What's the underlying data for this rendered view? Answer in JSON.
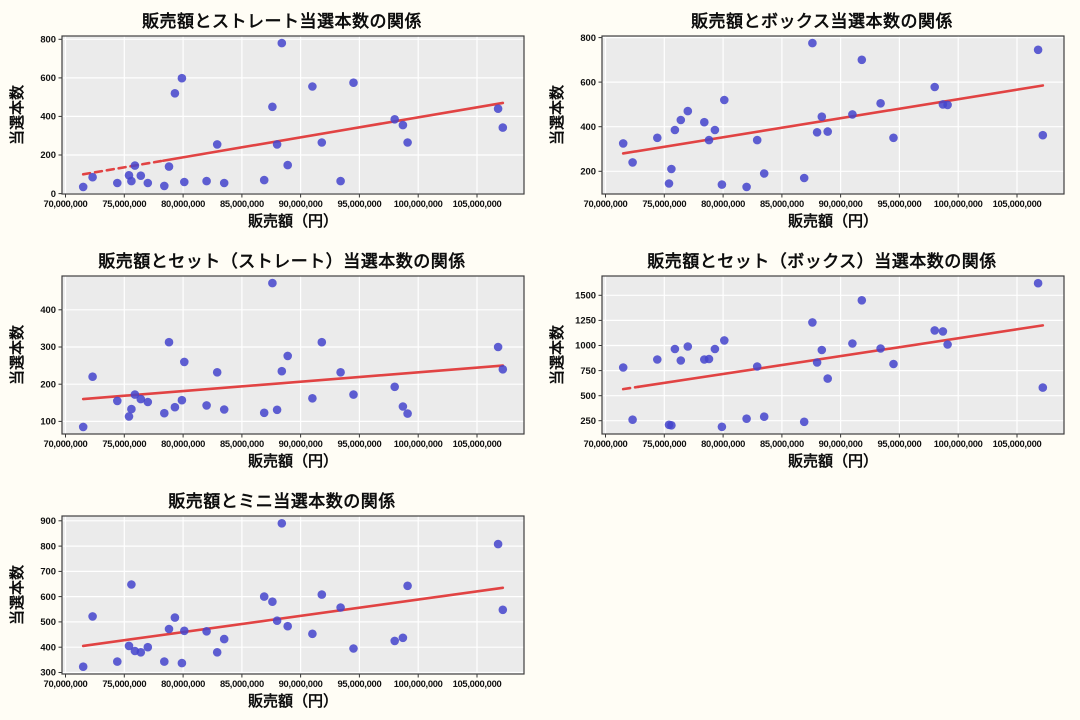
{
  "figure": {
    "background": "#fffdf5",
    "panel_bg": "#ebebeb",
    "grid_color": "#ffffff",
    "frame_color": "#3f3f3f",
    "tick_color": "#333333",
    "text_color": "#111111",
    "marker_color": "#4444cc",
    "marker_opacity": 0.85,
    "trend_color": "#e13b3b"
  },
  "shared": {
    "xlabel": "販売額（円）",
    "ylabel": "当選本数",
    "xlim": [
      69.7,
      109.0
    ],
    "xticks": [
      {
        "value_m": 70,
        "label": "70,000,000"
      },
      {
        "value_m": 75,
        "label": "75,000,000"
      },
      {
        "value_m": 80,
        "label": "80,000,000"
      },
      {
        "value_m": 85,
        "label": "85,000,000"
      },
      {
        "value_m": 90,
        "label": "90,000,000"
      },
      {
        "value_m": 95,
        "label": "95,000,000"
      },
      {
        "value_m": 100,
        "label": "100,000,000"
      },
      {
        "value_m": 105,
        "label": "105,000,000"
      }
    ],
    "x_values_m": [
      71.5,
      72.3,
      74.4,
      75.4,
      75.6,
      75.9,
      76.4,
      77.0,
      78.4,
      78.8,
      79.3,
      79.9,
      80.1,
      82.0,
      82.9,
      83.5,
      86.9,
      87.6,
      88.0,
      88.4,
      88.9,
      91.0,
      91.8,
      93.4,
      94.5,
      98.0,
      98.7,
      99.1,
      106.8,
      107.2
    ]
  },
  "chart_data": [
    {
      "type": "scatter",
      "title": "販売額とストレート当選本数の関係",
      "xlabel": "販売額（円）",
      "ylabel": "当選本数",
      "grid": true,
      "ylim": [
        -2,
        817
      ],
      "yticks": [
        0,
        200,
        400,
        600,
        800
      ],
      "y_values": [
        35,
        85,
        55,
        95,
        65,
        145,
        93,
        55,
        40,
        140,
        520,
        598,
        60,
        65,
        255,
        55,
        70,
        450,
        255,
        780,
        148,
        555,
        265,
        65,
        575,
        385,
        355,
        265,
        440,
        342
      ],
      "trend": {
        "x_start_m": 71.5,
        "y_start": 100,
        "x_end_m": 107.2,
        "y_end": 470,
        "lead_dash_end_m": 78.3
      }
    },
    {
      "type": "scatter",
      "title": "販売額とボックス当選本数の関係",
      "xlabel": "販売額（円）",
      "ylabel": "当選本数",
      "grid": true,
      "ylim": [
        98,
        807
      ],
      "yticks": [
        200,
        400,
        600,
        800
      ],
      "y_values": [
        325,
        240,
        350,
        145,
        210,
        385,
        430,
        470,
        420,
        340,
        385,
        140,
        520,
        130,
        340,
        190,
        170,
        775,
        375,
        445,
        378,
        455,
        700,
        505,
        350,
        578,
        500,
        498,
        745,
        362
      ],
      "trend": {
        "x_start_m": 71.5,
        "y_start": 280,
        "x_end_m": 107.2,
        "y_end": 585,
        "lead_dash_end_m": null
      }
    },
    {
      "type": "scatter",
      "title": "販売額とセット（ストレート）当選本数の関係",
      "xlabel": "販売額（円）",
      "ylabel": "当選本数",
      "grid": true,
      "ylim": [
        66,
        491
      ],
      "yticks": [
        100,
        200,
        300,
        400
      ],
      "y_values": [
        85,
        220,
        155,
        113,
        133,
        172,
        160,
        152,
        122,
        313,
        138,
        157,
        260,
        143,
        232,
        132,
        123,
        472,
        131,
        235,
        276,
        162,
        313,
        232,
        172,
        193,
        140,
        121,
        300,
        240
      ],
      "trend": {
        "x_start_m": 71.5,
        "y_start": 160,
        "x_end_m": 107.2,
        "y_end": 250,
        "lead_dash_end_m": null
      }
    },
    {
      "type": "scatter",
      "title": "販売額とセット（ボックス）当選本数の関係",
      "xlabel": "販売額（円）",
      "ylabel": "当選本数",
      "grid": true,
      "ylim": [
        118,
        1692
      ],
      "yticks": [
        250,
        500,
        750,
        1000,
        1250,
        1500
      ],
      "y_values": [
        780,
        260,
        860,
        210,
        205,
        965,
        850,
        990,
        860,
        865,
        965,
        190,
        1050,
        270,
        790,
        290,
        240,
        1230,
        830,
        955,
        670,
        1020,
        1450,
        970,
        815,
        1150,
        1140,
        1010,
        1620,
        580
      ],
      "trend": {
        "x_start_m": 71.5,
        "y_start": 565,
        "x_end_m": 107.2,
        "y_end": 1200,
        "lead_dash_end_m": 72.8
      }
    },
    {
      "type": "scatter",
      "title": "販売額とミニ当選本数の関係",
      "xlabel": "販売額（円）",
      "ylabel": "当選本数",
      "grid": true,
      "ylim": [
        294,
        919
      ],
      "yticks": [
        300,
        400,
        500,
        600,
        700,
        800,
        900
      ],
      "y_values": [
        323,
        522,
        343,
        405,
        648,
        385,
        380,
        400,
        343,
        472,
        517,
        337,
        465,
        463,
        380,
        432,
        600,
        580,
        505,
        890,
        483,
        453,
        608,
        557,
        395,
        425,
        437,
        643,
        808,
        548
      ],
      "trend": {
        "x_start_m": 71.5,
        "y_start": 405,
        "x_end_m": 107.2,
        "y_end": 635,
        "lead_dash_end_m": null
      }
    }
  ]
}
